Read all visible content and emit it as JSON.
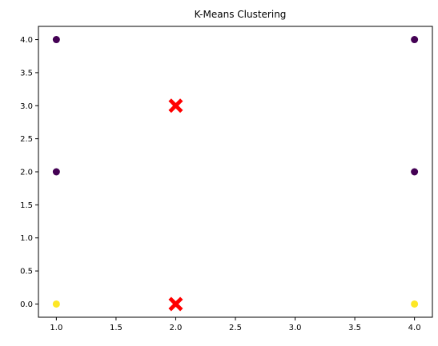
{
  "chart_data": {
    "type": "scatter",
    "title": "K-Means Clustering",
    "xlabel": "",
    "ylabel": "",
    "xlim": [
      0.85,
      4.15
    ],
    "ylim": [
      -0.2,
      4.2
    ],
    "xticks": [
      1.0,
      1.5,
      2.0,
      2.5,
      3.0,
      3.5,
      4.0
    ],
    "yticks": [
      0.0,
      0.5,
      1.0,
      1.5,
      2.0,
      2.5,
      3.0,
      3.5,
      4.0
    ],
    "xtick_labels": [
      "1.0",
      "1.5",
      "2.0",
      "2.5",
      "3.0",
      "3.5",
      "4.0"
    ],
    "ytick_labels": [
      "0.0",
      "0.5",
      "1.0",
      "1.5",
      "2.0",
      "2.5",
      "3.0",
      "3.5",
      "4.0"
    ],
    "grid": false,
    "points": [
      {
        "x": 1,
        "y": 4,
        "cluster": 0
      },
      {
        "x": 1,
        "y": 2,
        "cluster": 0
      },
      {
        "x": 4,
        "y": 4,
        "cluster": 0
      },
      {
        "x": 4,
        "y": 2,
        "cluster": 0
      },
      {
        "x": 1,
        "y": 0,
        "cluster": 1
      },
      {
        "x": 4,
        "y": 0,
        "cluster": 1
      }
    ],
    "centroids": [
      {
        "x": 2,
        "y": 3
      },
      {
        "x": 2,
        "y": 0
      }
    ],
    "cluster_colors": [
      "#440154",
      "#fde725"
    ],
    "centroid_color": "#ff0000",
    "centroid_marker": "X"
  }
}
